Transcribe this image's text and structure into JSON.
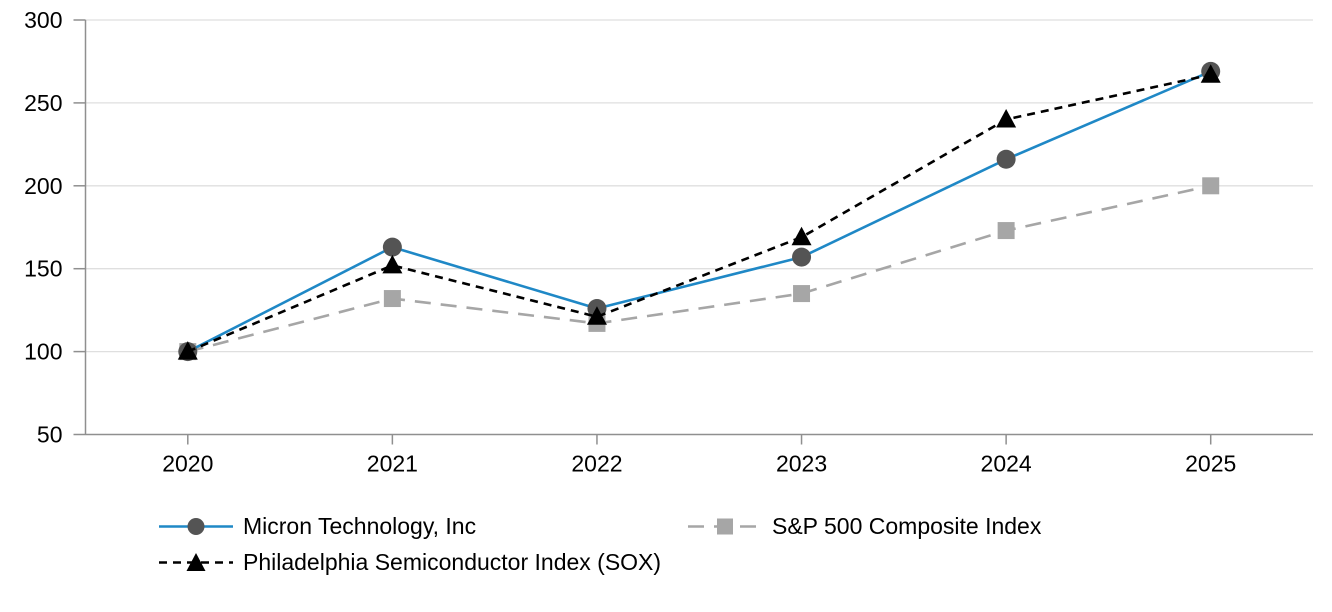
{
  "chart_data": {
    "type": "line",
    "title": "",
    "xlabel": "",
    "ylabel": "",
    "x": [
      "2020",
      "2021",
      "2022",
      "2023",
      "2024",
      "2025"
    ],
    "series": [
      {
        "id": "micron",
        "name": "Micron Technology, Inc",
        "values": [
          100,
          163,
          126,
          157,
          216,
          269
        ],
        "color": "#1f88c6",
        "marker": "circle",
        "marker_color": "#545454",
        "line_style": "solid"
      },
      {
        "id": "sp500",
        "name": "S&P 500 Composite Index",
        "values": [
          100,
          132,
          117,
          135,
          173,
          200
        ],
        "color": "#a6a6a6",
        "marker": "square",
        "marker_color": "#a6a6a6",
        "line_style": "long-dash"
      },
      {
        "id": "sox",
        "name": "Philadelphia Semiconductor Index (SOX)",
        "values": [
          100,
          152,
          121,
          169,
          240,
          267
        ],
        "color": "#000000",
        "marker": "triangle",
        "marker_color": "#000000",
        "line_style": "dash"
      }
    ],
    "ylim": [
      50,
      300
    ],
    "yticks": [
      50,
      100,
      150,
      200,
      250,
      300
    ],
    "grid": true,
    "legend_position": "bottom",
    "colors": {
      "grid": "#dfdfdf",
      "axis": "#8f8f8f",
      "text": "#000000"
    }
  }
}
